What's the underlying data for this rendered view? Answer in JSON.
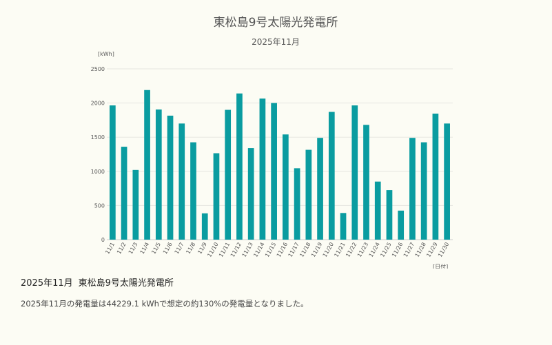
{
  "chart_data": {
    "type": "bar",
    "title": "東松島9号太陽光発電所",
    "subtitle": "2025年11月",
    "ylabel": "[kWh]",
    "xlabel": "[日付]",
    "ylim": [
      0,
      2500
    ],
    "yticks": [
      0,
      500,
      1000,
      1500,
      2000,
      2500
    ],
    "grid": true,
    "bar_color": "#0a9ca0",
    "categories": [
      "11/1",
      "11/2",
      "11/3",
      "11/4",
      "11/5",
      "11/6",
      "11/7",
      "11/8",
      "11/9",
      "11/10",
      "11/11",
      "11/12",
      "11/13",
      "11/14",
      "11/15",
      "11/16",
      "11/17",
      "11/18",
      "11/19",
      "11/20",
      "11/21",
      "11/22",
      "11/23",
      "11/24",
      "11/25",
      "11/26",
      "11/27",
      "11/28",
      "11/29",
      "11/30"
    ],
    "values": [
      1965,
      1360,
      1020,
      2190,
      1905,
      1815,
      1700,
      1425,
      385,
      1265,
      1900,
      2140,
      1340,
      2065,
      2000,
      1540,
      1045,
      1315,
      1490,
      1870,
      390,
      1965,
      1680,
      850,
      725,
      425,
      1490,
      1425,
      1845,
      1700
    ]
  },
  "summary": {
    "period": "2025年11月",
    "plant": "東松島9号太陽光発電所",
    "text": "2025年11月の発電量は44229.1 kWhで想定の約130%の発電量となりました。"
  }
}
